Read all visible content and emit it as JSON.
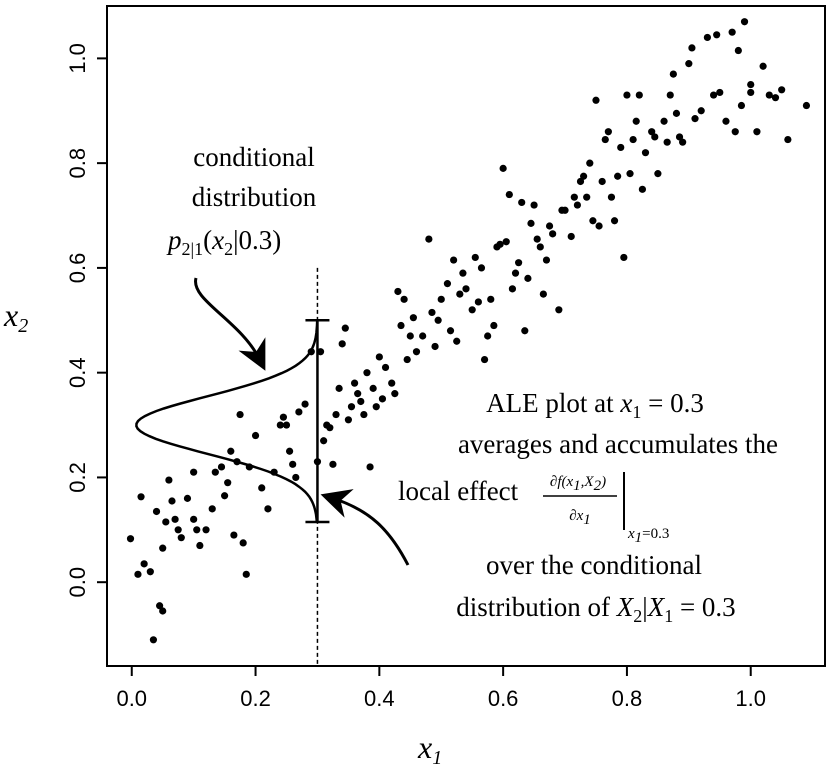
{
  "chart_data": {
    "type": "scatter",
    "xlabel": "x",
    "xlabel_sub": "1",
    "ylabel": "x",
    "ylabel_sub": "2",
    "xlim": [
      -0.04,
      1.12
    ],
    "ylim": [
      -0.16,
      1.1
    ],
    "x_ticks": [
      "0.0",
      "0.2",
      "0.4",
      "0.6",
      "0.8",
      "1.0"
    ],
    "x_tick_values": [
      0.0,
      0.2,
      0.4,
      0.6,
      0.8,
      1.0
    ],
    "y_ticks": [
      "0.0",
      "0.2",
      "0.4",
      "0.6",
      "0.8",
      "1.0"
    ],
    "y_tick_values": [
      0.0,
      0.2,
      0.4,
      0.6,
      0.8,
      1.0
    ],
    "grid": false,
    "marker_color": "#000000",
    "points": [
      [
        -0.002,
        0.083
      ],
      [
        0.01,
        0.015
      ],
      [
        0.015,
        0.163
      ],
      [
        0.02,
        0.035
      ],
      [
        0.03,
        0.02
      ],
      [
        0.04,
        0.135
      ],
      [
        0.035,
        -0.11
      ],
      [
        0.05,
        0.065
      ],
      [
        0.045,
        -0.045
      ],
      [
        0.05,
        -0.055
      ],
      [
        0.055,
        0.115
      ],
      [
        0.06,
        0.195
      ],
      [
        0.065,
        0.155
      ],
      [
        0.07,
        0.12
      ],
      [
        0.075,
        0.1
      ],
      [
        0.08,
        0.085
      ],
      [
        0.09,
        0.16
      ],
      [
        0.1,
        0.21
      ],
      [
        0.1,
        0.12
      ],
      [
        0.105,
        0.1
      ],
      [
        0.11,
        0.07
      ],
      [
        0.12,
        0.1
      ],
      [
        0.13,
        0.14
      ],
      [
        0.135,
        0.21
      ],
      [
        0.145,
        0.22
      ],
      [
        0.15,
        0.165
      ],
      [
        0.155,
        0.19
      ],
      [
        0.16,
        0.25
      ],
      [
        0.165,
        0.09
      ],
      [
        0.17,
        0.23
      ],
      [
        0.175,
        0.32
      ],
      [
        0.18,
        0.075
      ],
      [
        0.185,
        0.015
      ],
      [
        0.19,
        0.22
      ],
      [
        0.2,
        0.28
      ],
      [
        0.21,
        0.18
      ],
      [
        0.22,
        0.14
      ],
      [
        0.23,
        0.21
      ],
      [
        0.24,
        0.3
      ],
      [
        0.245,
        0.315
      ],
      [
        0.25,
        0.3
      ],
      [
        0.255,
        0.25
      ],
      [
        0.26,
        0.225
      ],
      [
        0.265,
        0.2
      ],
      [
        0.27,
        0.325
      ],
      [
        0.28,
        0.34
      ],
      [
        0.29,
        0.44
      ],
      [
        0.3,
        0.23
      ],
      [
        0.305,
        0.44
      ],
      [
        0.31,
        0.27
      ],
      [
        0.315,
        0.3
      ],
      [
        0.32,
        0.295
      ],
      [
        0.325,
        0.225
      ],
      [
        0.33,
        0.32
      ],
      [
        0.335,
        0.37
      ],
      [
        0.34,
        0.455
      ],
      [
        0.345,
        0.485
      ],
      [
        0.35,
        0.31
      ],
      [
        0.355,
        0.335
      ],
      [
        0.36,
        0.38
      ],
      [
        0.365,
        0.36
      ],
      [
        0.37,
        0.345
      ],
      [
        0.375,
        0.32
      ],
      [
        0.38,
        0.4
      ],
      [
        0.385,
        0.22
      ],
      [
        0.39,
        0.37
      ],
      [
        0.395,
        0.335
      ],
      [
        0.4,
        0.43
      ],
      [
        0.405,
        0.35
      ],
      [
        0.41,
        0.41
      ],
      [
        0.42,
        0.38
      ],
      [
        0.425,
        0.36
      ],
      [
        0.43,
        0.555
      ],
      [
        0.435,
        0.49
      ],
      [
        0.44,
        0.54
      ],
      [
        0.445,
        0.425
      ],
      [
        0.45,
        0.47
      ],
      [
        0.455,
        0.505
      ],
      [
        0.46,
        0.44
      ],
      [
        0.47,
        0.47
      ],
      [
        0.48,
        0.655
      ],
      [
        0.485,
        0.515
      ],
      [
        0.49,
        0.45
      ],
      [
        0.495,
        0.5
      ],
      [
        0.5,
        0.54
      ],
      [
        0.51,
        0.57
      ],
      [
        0.515,
        0.48
      ],
      [
        0.52,
        0.615
      ],
      [
        0.525,
        0.46
      ],
      [
        0.53,
        0.55
      ],
      [
        0.535,
        0.59
      ],
      [
        0.54,
        0.56
      ],
      [
        0.55,
        0.52
      ],
      [
        0.555,
        0.62
      ],
      [
        0.56,
        0.535
      ],
      [
        0.565,
        0.6
      ],
      [
        0.57,
        0.425
      ],
      [
        0.575,
        0.47
      ],
      [
        0.58,
        0.54
      ],
      [
        0.585,
        0.49
      ],
      [
        0.59,
        0.64
      ],
      [
        0.595,
        0.645
      ],
      [
        0.6,
        0.79
      ],
      [
        0.605,
        0.65
      ],
      [
        0.61,
        0.74
      ],
      [
        0.615,
        0.56
      ],
      [
        0.62,
        0.59
      ],
      [
        0.625,
        0.61
      ],
      [
        0.63,
        0.725
      ],
      [
        0.635,
        0.48
      ],
      [
        0.64,
        0.58
      ],
      [
        0.645,
        0.685
      ],
      [
        0.65,
        0.72
      ],
      [
        0.655,
        0.655
      ],
      [
        0.66,
        0.64
      ],
      [
        0.665,
        0.55
      ],
      [
        0.67,
        0.615
      ],
      [
        0.675,
        0.68
      ],
      [
        0.68,
        0.665
      ],
      [
        0.69,
        0.52
      ],
      [
        0.695,
        0.71
      ],
      [
        0.7,
        0.71
      ],
      [
        0.71,
        0.66
      ],
      [
        0.715,
        0.735
      ],
      [
        0.72,
        0.72
      ],
      [
        0.725,
        0.765
      ],
      [
        0.73,
        0.775
      ],
      [
        0.735,
        0.735
      ],
      [
        0.74,
        0.8
      ],
      [
        0.745,
        0.69
      ],
      [
        0.75,
        0.92
      ],
      [
        0.755,
        0.68
      ],
      [
        0.76,
        0.765
      ],
      [
        0.765,
        0.845
      ],
      [
        0.77,
        0.86
      ],
      [
        0.775,
        0.735
      ],
      [
        0.78,
        0.69
      ],
      [
        0.785,
        0.775
      ],
      [
        0.79,
        0.83
      ],
      [
        0.795,
        0.62
      ],
      [
        0.8,
        0.93
      ],
      [
        0.805,
        0.78
      ],
      [
        0.81,
        0.845
      ],
      [
        0.815,
        0.88
      ],
      [
        0.82,
        0.93
      ],
      [
        0.825,
        0.75
      ],
      [
        0.83,
        0.82
      ],
      [
        0.84,
        0.86
      ],
      [
        0.845,
        0.85
      ],
      [
        0.85,
        0.78
      ],
      [
        0.86,
        0.88
      ],
      [
        0.865,
        0.84
      ],
      [
        0.87,
        0.93
      ],
      [
        0.875,
        0.97
      ],
      [
        0.88,
        0.895
      ],
      [
        0.885,
        0.85
      ],
      [
        0.89,
        0.84
      ],
      [
        0.9,
        0.99
      ],
      [
        0.905,
        1.02
      ],
      [
        0.91,
        0.885
      ],
      [
        0.92,
        0.9
      ],
      [
        0.93,
        1.04
      ],
      [
        0.94,
        0.93
      ],
      [
        0.945,
        1.045
      ],
      [
        0.95,
        0.935
      ],
      [
        0.96,
        0.88
      ],
      [
        0.97,
        1.05
      ],
      [
        0.975,
        0.86
      ],
      [
        0.98,
        1.015
      ],
      [
        0.985,
        0.91
      ],
      [
        0.99,
        1.07
      ],
      [
        1.0,
        0.935
      ],
      [
        1.01,
        0.86
      ],
      [
        1.02,
        0.985
      ],
      [
        1.03,
        0.93
      ],
      [
        1.04,
        0.925
      ],
      [
        1.05,
        0.94
      ],
      [
        1.06,
        0.845
      ],
      [
        1.09,
        0.91
      ],
      [
        1.0,
        0.95
      ]
    ],
    "conditional_x": 0.3,
    "conditional_range": [
      0.115,
      0.5
    ],
    "conditional_mean": 0.3,
    "labels": {
      "cond_line1": "conditional",
      "cond_line2": "distribution",
      "cond_p": "p",
      "cond_p_sub": "2|1",
      "cond_p_arg_open": "(",
      "cond_p_arg_x": "x",
      "cond_p_arg_x_sub": "2",
      "cond_p_arg_rest": "|0.3)",
      "ale_line1_pre": "ALE plot at ",
      "ale_line1_x": "x",
      "ale_line1_x_sub": "1",
      "ale_line1_post": " = 0.3",
      "ale_line2": "averages and accumulates the",
      "ale_line3_pre": "local effect",
      "ale_frac_num": "∂f(x",
      "ale_frac_num_sub1": "1",
      "ale_frac_num_mid": ",X",
      "ale_frac_num_sub2": "2",
      "ale_frac_num_end": ")",
      "ale_frac_den": "∂x",
      "ale_frac_den_sub": "1",
      "ale_eval_x": "x",
      "ale_eval_sub": "1",
      "ale_eval_val": "=0.3",
      "over_line1": "over the conditional",
      "over_line2_pre": "distribution of ",
      "over_line2_X2": "X",
      "over_line2_X2_sub": "2",
      "over_line2_bar": "|",
      "over_line2_X1": "X",
      "over_line2_X1_sub": "1",
      "over_line2_post": " = 0.3"
    }
  }
}
